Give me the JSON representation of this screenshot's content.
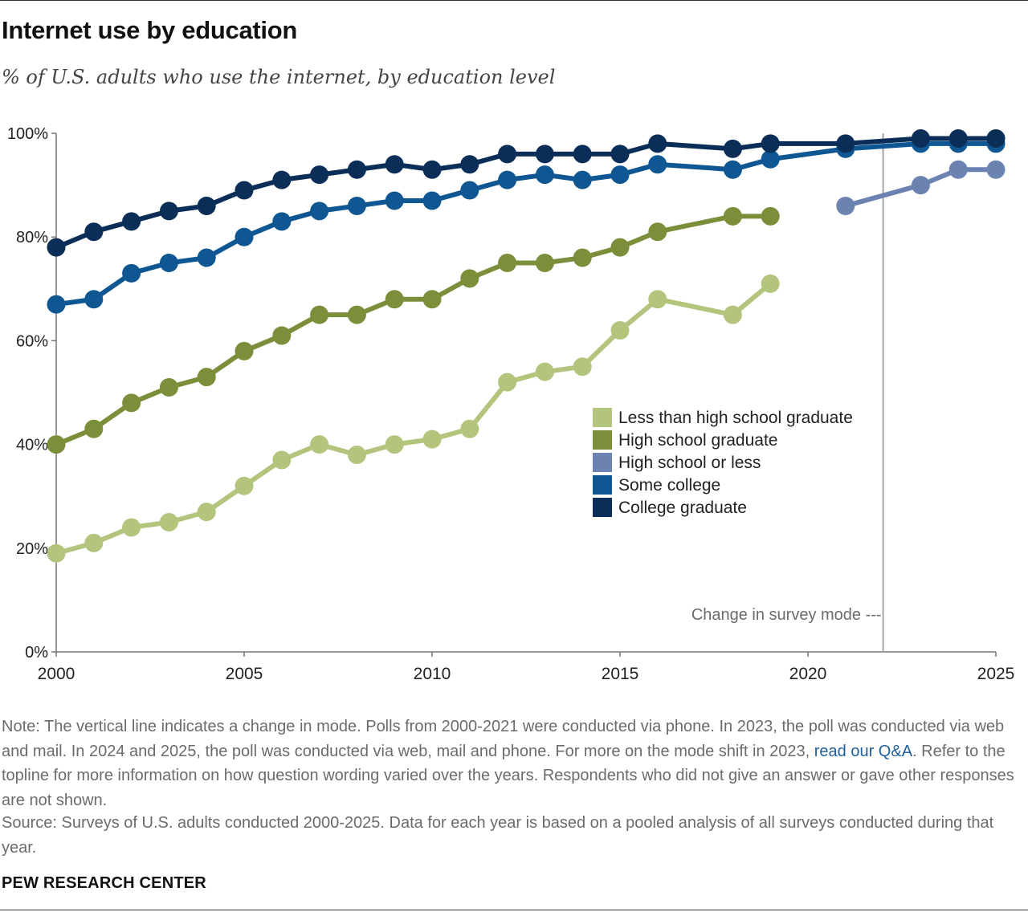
{
  "title": "Internet use by education",
  "subtitle": "% of U.S. adults who use the internet, by education level",
  "note": {
    "before_link": "Note: The vertical line indicates a change in mode. Polls from 2000-2021 were conducted via phone. In 2023, the poll was conducted via web and mail. In 2024 and 2025, the poll was conducted via web, mail and phone. For more on the mode shift in 2023, ",
    "link_text": "read our Q&A",
    "after_link": ". Refer to the topline for more information on how question wording varied over the years. Respondents who did not give an answer or gave other responses are not shown."
  },
  "source": "Source: Surveys of U.S. adults conducted 2000-2025. Data for each year is based on a pooled analysis of all surveys conducted during that year.",
  "organization": "PEW RESEARCH CENTER",
  "chart_data": {
    "type": "line",
    "xlim": [
      2000,
      2025
    ],
    "ylim": [
      0,
      100
    ],
    "x_ticks": [
      2000,
      2005,
      2010,
      2015,
      2020,
      2025
    ],
    "x_tick_labels": [
      "2000",
      "2005",
      "2010",
      "2015",
      "2020",
      "2025"
    ],
    "y_ticks": [
      0,
      20,
      40,
      60,
      80,
      100
    ],
    "y_tick_labels": [
      "0%",
      "20%",
      "40%",
      "60%",
      "80%",
      "100%"
    ],
    "grid": false,
    "legend_position": "center-right",
    "annotation": {
      "x": 2022,
      "text": "Change in survey mode ---"
    },
    "series": [
      {
        "name": "Less than high school graduate",
        "color": "#b3c47d",
        "x": [
          2000,
          2001,
          2002,
          2003,
          2004,
          2005,
          2006,
          2007,
          2008,
          2009,
          2010,
          2011,
          2012,
          2013,
          2014,
          2015,
          2016,
          2018,
          2019
        ],
        "y": [
          19,
          21,
          24,
          25,
          27,
          32,
          37,
          40,
          38,
          40,
          41,
          43,
          52,
          54,
          55,
          62,
          68,
          65,
          71
        ]
      },
      {
        "name": "High school graduate",
        "color": "#7b8e3a",
        "x": [
          2000,
          2001,
          2002,
          2003,
          2004,
          2005,
          2006,
          2007,
          2008,
          2009,
          2010,
          2011,
          2012,
          2013,
          2014,
          2015,
          2016,
          2018,
          2019
        ],
        "y": [
          40,
          43,
          48,
          51,
          53,
          58,
          61,
          65,
          65,
          68,
          68,
          72,
          75,
          75,
          76,
          78,
          81,
          84,
          84
        ]
      },
      {
        "name": "High school or less",
        "color": "#6c82b1",
        "x": [
          2021,
          2023,
          2024,
          2025
        ],
        "y": [
          86,
          90,
          93,
          93
        ]
      },
      {
        "name": "Some college",
        "color": "#0e5792",
        "x": [
          2000,
          2001,
          2002,
          2003,
          2004,
          2005,
          2006,
          2007,
          2008,
          2009,
          2010,
          2011,
          2012,
          2013,
          2014,
          2015,
          2016,
          2018,
          2019,
          2021,
          2023,
          2024,
          2025
        ],
        "y": [
          67,
          68,
          73,
          75,
          76,
          80,
          83,
          85,
          86,
          87,
          87,
          89,
          91,
          92,
          91,
          92,
          94,
          93,
          95,
          97,
          98,
          98,
          98
        ]
      },
      {
        "name": "College graduate",
        "color": "#0b2e58",
        "x": [
          2000,
          2001,
          2002,
          2003,
          2004,
          2005,
          2006,
          2007,
          2008,
          2009,
          2010,
          2011,
          2012,
          2013,
          2014,
          2015,
          2016,
          2018,
          2019,
          2021,
          2023,
          2024,
          2025
        ],
        "y": [
          78,
          81,
          83,
          85,
          86,
          89,
          91,
          92,
          93,
          94,
          93,
          94,
          96,
          96,
          96,
          96,
          98,
          97,
          98,
          98,
          99,
          99,
          99
        ]
      }
    ]
  }
}
